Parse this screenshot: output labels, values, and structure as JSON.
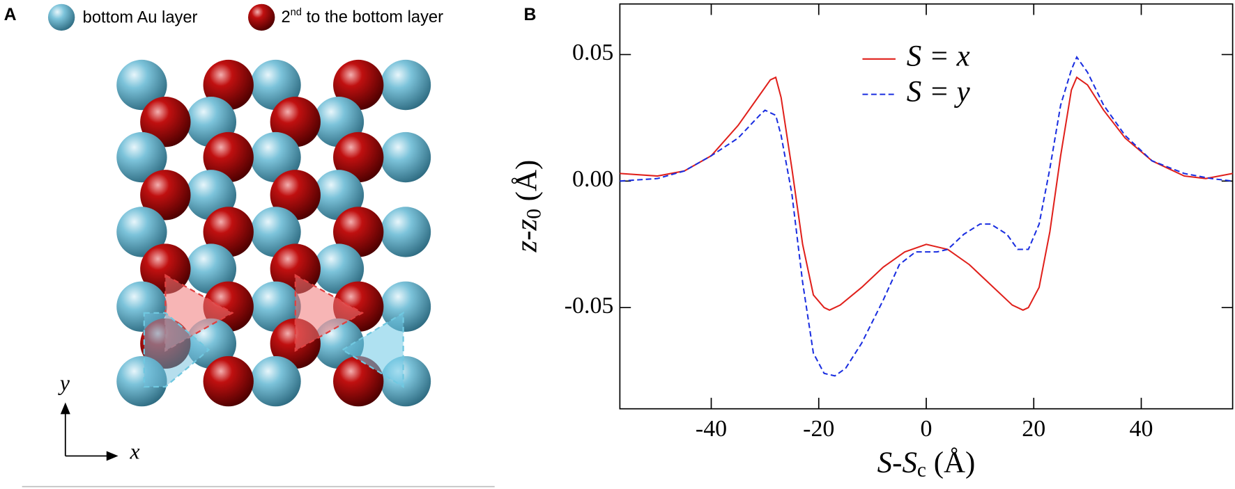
{
  "panel_a": {
    "letter": "A",
    "legend": {
      "bottom": "bottom Au layer",
      "second": [
        "2",
        "nd",
        " to the bottom layer"
      ]
    },
    "axis_x": "x",
    "axis_y": "y"
  },
  "chart_data": {
    "type": "line",
    "letter": "B",
    "x_label": [
      "S",
      "-S",
      "c",
      " (Å)"
    ],
    "y_label": [
      "z-z",
      "0",
      " (Å)"
    ],
    "xlim": [
      -57,
      57
    ],
    "xticks": [
      -40,
      -20,
      0,
      20,
      40
    ],
    "ylim": [
      -0.09,
      0.07
    ],
    "yticks": [
      {
        "value": -0.05,
        "label": "-0.05"
      },
      {
        "value": 0,
        "label": "0.00"
      },
      {
        "value": 0.05,
        "label": "0.05"
      }
    ],
    "legend": "upper center",
    "series": [
      {
        "name": "S = x",
        "color": "#e0201b",
        "dash": false,
        "x": [
          -57,
          -50,
          -45,
          -40,
          -35,
          -31,
          -29,
          -28,
          -27,
          -25,
          -23,
          -21,
          -19,
          -18,
          -16,
          -12,
          -8,
          -4,
          0,
          4,
          8,
          12,
          16,
          18,
          19,
          21,
          23,
          25,
          27,
          28,
          30,
          33,
          37,
          42,
          48,
          52,
          57
        ],
        "values": [
          0.003,
          0.002,
          0.004,
          0.01,
          0.022,
          0.034,
          0.04,
          0.041,
          0.033,
          0.005,
          -0.025,
          -0.045,
          -0.05,
          -0.051,
          -0.049,
          -0.042,
          -0.034,
          -0.028,
          -0.025,
          -0.027,
          -0.033,
          -0.041,
          -0.049,
          -0.051,
          -0.05,
          -0.042,
          -0.02,
          0.01,
          0.036,
          0.041,
          0.038,
          0.028,
          0.017,
          0.008,
          0.002,
          0.001,
          0.003
        ]
      },
      {
        "name": "S = y",
        "color": "#1a2ee0",
        "dash": true,
        "x": [
          -57,
          -50,
          -45,
          -40,
          -35,
          -31,
          -30,
          -28,
          -27,
          -25,
          -23,
          -21,
          -19,
          -17,
          -15,
          -12,
          -8,
          -5,
          -2,
          2,
          4,
          7,
          10,
          12,
          15,
          17,
          19,
          21,
          23,
          25,
          27,
          28,
          30,
          33,
          37,
          42,
          48,
          53,
          57
        ],
        "values": [
          0.0,
          0.001,
          0.004,
          0.01,
          0.017,
          0.026,
          0.028,
          0.026,
          0.018,
          -0.005,
          -0.04,
          -0.068,
          -0.076,
          -0.077,
          -0.074,
          -0.064,
          -0.047,
          -0.033,
          -0.028,
          -0.028,
          -0.027,
          -0.021,
          -0.017,
          -0.017,
          -0.021,
          -0.027,
          -0.027,
          -0.017,
          0.005,
          0.03,
          0.044,
          0.049,
          0.043,
          0.03,
          0.018,
          0.008,
          0.003,
          0.001,
          0.0
        ]
      }
    ]
  }
}
